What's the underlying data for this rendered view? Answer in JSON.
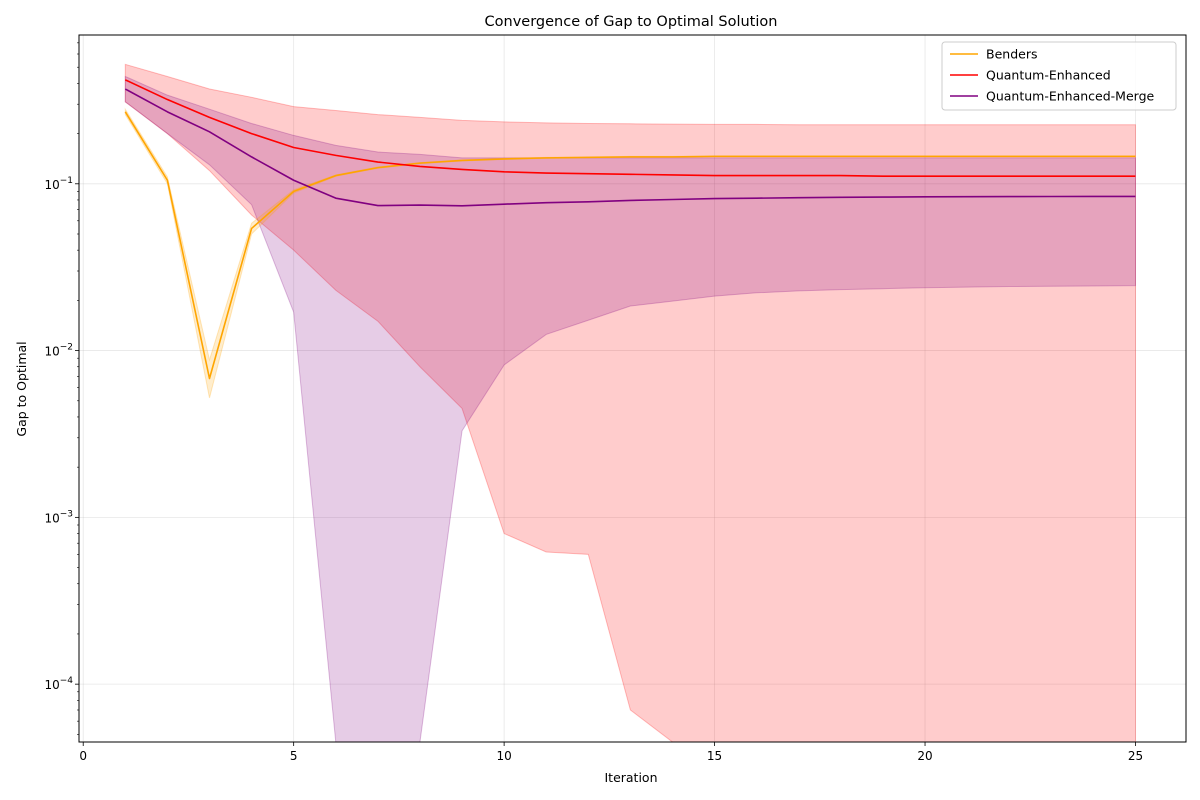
{
  "chart_data": {
    "type": "line",
    "title": "Convergence of Gap to Optimal Solution",
    "xlabel": "Iteration",
    "ylabel": "Gap to Optimal",
    "xlim": [
      -0.1,
      26.2
    ],
    "ylim": [
      4.5e-05,
      0.78
    ],
    "yscale": "log",
    "x_ticks": [
      0,
      5,
      10,
      15,
      20,
      25
    ],
    "y_ticks": [
      {
        "value": 0.1,
        "base": "10",
        "exp": "−1"
      },
      {
        "value": 0.01,
        "base": "10",
        "exp": "−2"
      },
      {
        "value": 0.001,
        "base": "10",
        "exp": "−3"
      },
      {
        "value": 0.0001,
        "base": "10",
        "exp": "−4"
      }
    ],
    "grid": true,
    "legend_position": "upper right",
    "x": [
      1,
      2,
      3,
      4,
      5,
      6,
      7,
      8,
      9,
      10,
      11,
      12,
      13,
      14,
      15,
      16,
      17,
      18,
      19,
      20,
      21,
      22,
      23,
      24,
      25
    ],
    "series": [
      {
        "name": "Benders",
        "color": "#FFA500",
        "values": [
          0.27,
          0.105,
          0.0068,
          0.054,
          0.09,
          0.112,
          0.125,
          0.133,
          0.138,
          0.141,
          0.143,
          0.144,
          0.145,
          0.145,
          0.146,
          0.146,
          0.146,
          0.146,
          0.146,
          0.146,
          0.146,
          0.146,
          0.146,
          0.146,
          0.146
        ],
        "band_upper": [
          0.28,
          0.11,
          0.0088,
          0.058,
          0.092,
          0.113,
          0.126,
          0.134,
          0.139,
          0.142,
          0.144,
          0.145,
          0.146,
          0.146,
          0.147,
          0.147,
          0.147,
          0.147,
          0.147,
          0.147,
          0.147,
          0.147,
          0.147,
          0.147,
          0.147
        ],
        "band_lower": [
          0.26,
          0.1,
          0.0052,
          0.05,
          0.088,
          0.111,
          0.124,
          0.132,
          0.137,
          0.14,
          0.142,
          0.143,
          0.144,
          0.144,
          0.145,
          0.145,
          0.145,
          0.145,
          0.145,
          0.145,
          0.145,
          0.145,
          0.145,
          0.145,
          0.145
        ]
      },
      {
        "name": "Quantum-Enhanced",
        "color": "#FF0000",
        "values": [
          0.42,
          0.32,
          0.25,
          0.2,
          0.165,
          0.148,
          0.135,
          0.127,
          0.122,
          0.118,
          0.116,
          0.115,
          0.114,
          0.113,
          0.112,
          0.112,
          0.112,
          0.112,
          0.111,
          0.111,
          0.111,
          0.111,
          0.111,
          0.111,
          0.111
        ],
        "band_upper": [
          0.52,
          0.44,
          0.37,
          0.33,
          0.29,
          0.275,
          0.26,
          0.25,
          0.24,
          0.235,
          0.232,
          0.23,
          0.229,
          0.228,
          0.227,
          0.227,
          0.226,
          0.226,
          0.226,
          0.226,
          0.226,
          0.226,
          0.226,
          0.226,
          0.226
        ],
        "band_lower": [
          0.31,
          0.2,
          0.12,
          0.065,
          0.04,
          0.023,
          0.015,
          0.008,
          0.0045,
          0.0008,
          0.00062,
          0.0006,
          7e-05,
          1e-05,
          1e-05,
          1e-05,
          1e-05,
          1e-05,
          1e-05,
          1e-05,
          1e-05,
          1e-05,
          1e-05,
          1e-05,
          1e-05
        ]
      },
      {
        "name": "Quantum-Enhanced-Merge",
        "color": "#800080",
        "values": [
          0.37,
          0.27,
          0.205,
          0.145,
          0.105,
          0.082,
          0.074,
          0.0745,
          0.0738,
          0.0755,
          0.077,
          0.078,
          0.0795,
          0.0805,
          0.0815,
          0.082,
          0.0825,
          0.083,
          0.0832,
          0.0835,
          0.0837,
          0.0838,
          0.0839,
          0.084,
          0.084
        ],
        "band_upper": [
          0.44,
          0.34,
          0.28,
          0.23,
          0.195,
          0.17,
          0.155,
          0.15,
          0.143,
          0.143,
          0.143,
          0.143,
          0.143,
          0.143,
          0.143,
          0.143,
          0.143,
          0.143,
          0.143,
          0.143,
          0.143,
          0.143,
          0.143,
          0.143,
          0.143
        ],
        "band_lower": [
          0.31,
          0.2,
          0.13,
          0.075,
          0.017,
          1e-05,
          1e-05,
          1e-05,
          0.0033,
          0.0082,
          0.0125,
          0.0152,
          0.0185,
          0.0198,
          0.0212,
          0.0222,
          0.0228,
          0.0232,
          0.0235,
          0.0238,
          0.024,
          0.0242,
          0.0243,
          0.0244,
          0.0245
        ]
      }
    ]
  }
}
